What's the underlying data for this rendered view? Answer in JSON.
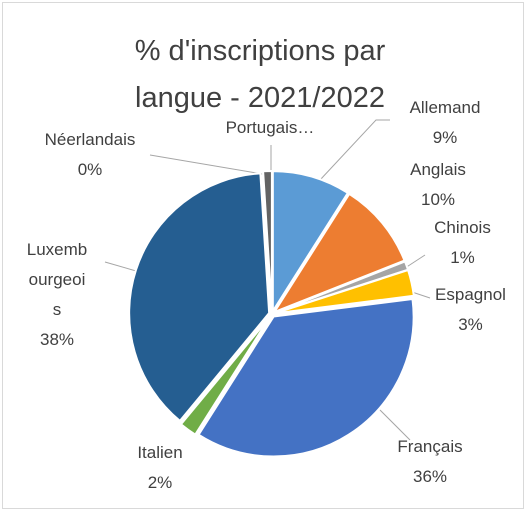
{
  "chart_data": {
    "type": "pie",
    "title": "% d'inscriptions par langue - 2021/2022",
    "categories": [
      "Allemand",
      "Anglais",
      "Chinois",
      "Espagnol",
      "Français",
      "Italien",
      "Luxembourgeois",
      "Néerlandais",
      "Portugais…"
    ],
    "values": [
      9,
      10,
      1,
      3,
      36,
      2,
      38,
      0,
      1
    ],
    "value_labels": [
      "9%",
      "10%",
      "1%",
      "3%",
      "36%",
      "2%",
      "38%",
      "0%",
      null
    ],
    "colors": [
      "#5b9bd5",
      "#ed7d31",
      "#a5a5a5",
      "#ffc000",
      "#4472c4",
      "#70ad47",
      "#255e91",
      "#9e480e",
      "#636363"
    ]
  }
}
